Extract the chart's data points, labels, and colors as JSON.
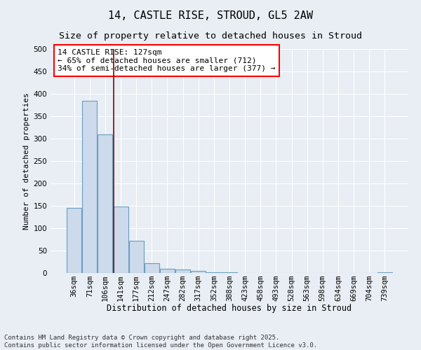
{
  "title1": "14, CASTLE RISE, STROUD, GL5 2AW",
  "title2": "Size of property relative to detached houses in Stroud",
  "xlabel": "Distribution of detached houses by size in Stroud",
  "ylabel": "Number of detached properties",
  "bar_labels": [
    "36sqm",
    "71sqm",
    "106sqm",
    "141sqm",
    "177sqm",
    "212sqm",
    "247sqm",
    "282sqm",
    "317sqm",
    "352sqm",
    "388sqm",
    "423sqm",
    "458sqm",
    "493sqm",
    "528sqm",
    "563sqm",
    "598sqm",
    "634sqm",
    "669sqm",
    "704sqm",
    "739sqm"
  ],
  "bar_values": [
    145,
    385,
    310,
    148,
    72,
    22,
    10,
    8,
    4,
    2,
    1,
    0,
    0,
    0,
    0,
    0,
    0,
    0,
    0,
    0,
    1
  ],
  "bar_color": "#ccdaeb",
  "bar_edge_color": "#6a9fc0",
  "ylim": [
    0,
    500
  ],
  "yticks": [
    0,
    50,
    100,
    150,
    200,
    250,
    300,
    350,
    400,
    450,
    500
  ],
  "red_line_x": 2.55,
  "annotation_box_text": "14 CASTLE RISE: 127sqm\n← 65% of detached houses are smaller (712)\n34% of semi-detached houses are larger (377) →",
  "background_color": "#e8eef4",
  "plot_bg_color": "#e8eef4",
  "footer_text": "Contains HM Land Registry data © Crown copyright and database right 2025.\nContains public sector information licensed under the Open Government Licence v3.0.",
  "title1_fontsize": 11,
  "title2_fontsize": 9.5,
  "xlabel_fontsize": 8.5,
  "ylabel_fontsize": 8,
  "tick_fontsize": 7.5,
  "annotation_fontsize": 8,
  "footer_fontsize": 6.5,
  "grid_color": "#ffffff"
}
